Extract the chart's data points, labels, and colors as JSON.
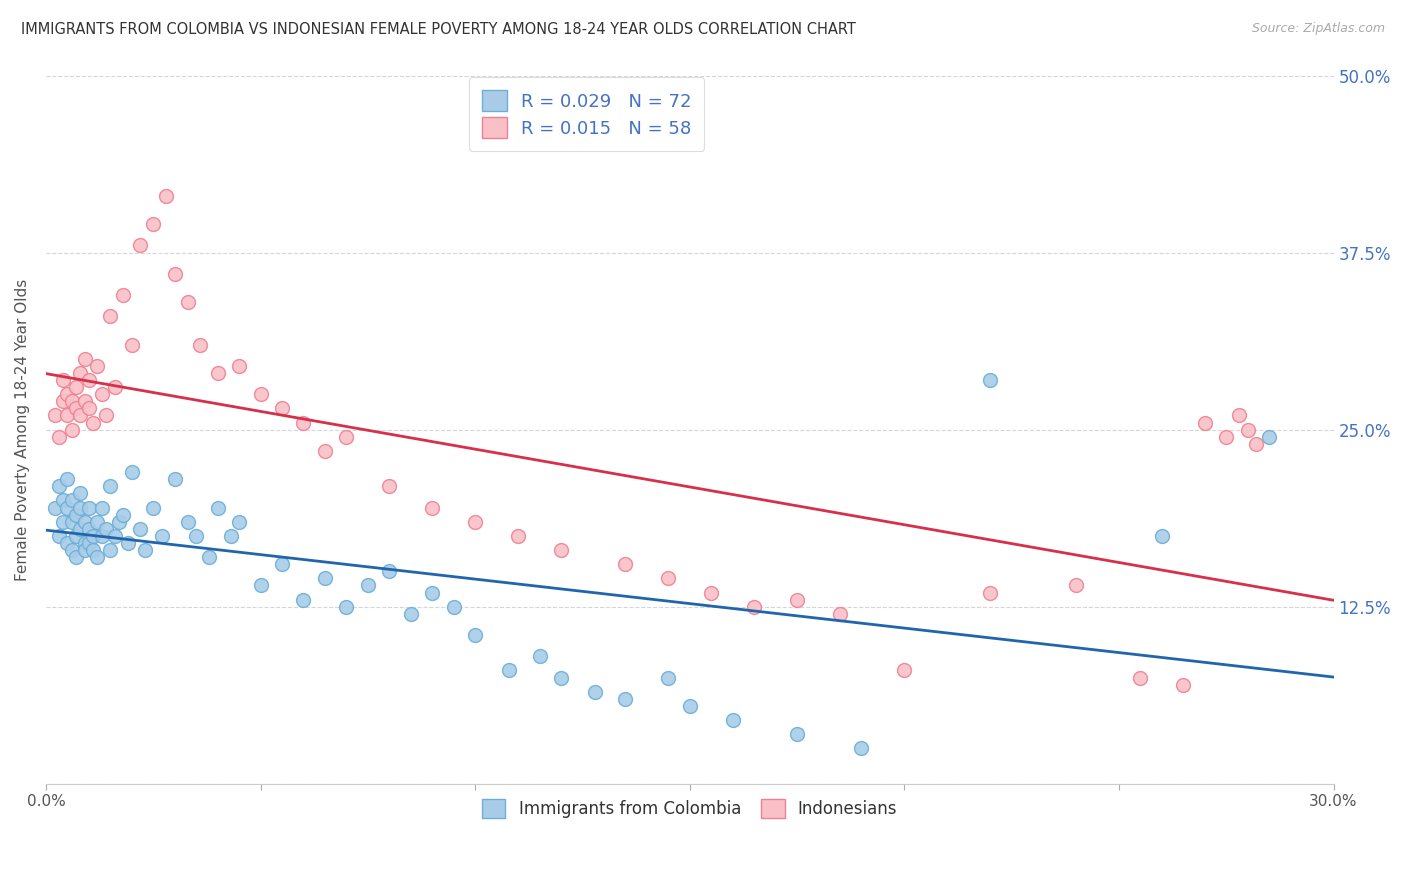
{
  "title": "IMMIGRANTS FROM COLOMBIA VS INDONESIAN FEMALE POVERTY AMONG 18-24 YEAR OLDS CORRELATION CHART",
  "source": "Source: ZipAtlas.com",
  "ylabel": "Female Poverty Among 18-24 Year Olds",
  "x_min": 0.0,
  "x_max": 0.3,
  "y_min": 0.0,
  "y_max": 0.5,
  "x_ticks": [
    0.0,
    0.05,
    0.1,
    0.15,
    0.2,
    0.25,
    0.3
  ],
  "x_tick_labels": [
    "0.0%",
    "",
    "",
    "",
    "",
    "",
    "30.0%"
  ],
  "y_ticks": [
    0.0,
    0.125,
    0.25,
    0.375,
    0.5
  ],
  "y_tick_labels": [
    "",
    "12.5%",
    "25.0%",
    "37.5%",
    "50.0%"
  ],
  "colombia_color": "#a8cce8",
  "colombia_edge_color": "#6baed6",
  "indonesia_color": "#f9c0c8",
  "indonesia_edge_color": "#f08090",
  "colombia_line_color": "#2166ac",
  "indonesia_line_color": "#d6304a",
  "colombia_R": 0.029,
  "colombia_N": 72,
  "indonesia_R": 0.015,
  "indonesia_N": 58,
  "legend_label_colombia": "Immigrants from Colombia",
  "legend_label_indonesia": "Indonesians",
  "background_color": "#ffffff",
  "grid_color": "#cccccc",
  "colombia_x": [
    0.002,
    0.003,
    0.003,
    0.004,
    0.004,
    0.005,
    0.005,
    0.005,
    0.006,
    0.006,
    0.006,
    0.007,
    0.007,
    0.007,
    0.008,
    0.008,
    0.008,
    0.009,
    0.009,
    0.009,
    0.01,
    0.01,
    0.01,
    0.011,
    0.011,
    0.012,
    0.012,
    0.013,
    0.013,
    0.014,
    0.015,
    0.015,
    0.016,
    0.017,
    0.018,
    0.019,
    0.02,
    0.022,
    0.023,
    0.025,
    0.027,
    0.03,
    0.033,
    0.035,
    0.038,
    0.04,
    0.043,
    0.045,
    0.05,
    0.055,
    0.06,
    0.065,
    0.07,
    0.075,
    0.08,
    0.085,
    0.09,
    0.095,
    0.1,
    0.108,
    0.115,
    0.12,
    0.128,
    0.135,
    0.145,
    0.15,
    0.16,
    0.175,
    0.19,
    0.22,
    0.26,
    0.285
  ],
  "colombia_y": [
    0.195,
    0.175,
    0.21,
    0.185,
    0.2,
    0.17,
    0.195,
    0.215,
    0.165,
    0.185,
    0.2,
    0.175,
    0.19,
    0.16,
    0.18,
    0.195,
    0.205,
    0.17,
    0.185,
    0.165,
    0.18,
    0.17,
    0.195,
    0.165,
    0.175,
    0.185,
    0.16,
    0.195,
    0.175,
    0.18,
    0.21,
    0.165,
    0.175,
    0.185,
    0.19,
    0.17,
    0.22,
    0.18,
    0.165,
    0.195,
    0.175,
    0.215,
    0.185,
    0.175,
    0.16,
    0.195,
    0.175,
    0.185,
    0.14,
    0.155,
    0.13,
    0.145,
    0.125,
    0.14,
    0.15,
    0.12,
    0.135,
    0.125,
    0.105,
    0.08,
    0.09,
    0.075,
    0.065,
    0.06,
    0.075,
    0.055,
    0.045,
    0.035,
    0.025,
    0.285,
    0.175,
    0.245
  ],
  "indonesia_x": [
    0.002,
    0.003,
    0.004,
    0.004,
    0.005,
    0.005,
    0.006,
    0.006,
    0.007,
    0.007,
    0.008,
    0.008,
    0.009,
    0.009,
    0.01,
    0.01,
    0.011,
    0.012,
    0.013,
    0.014,
    0.015,
    0.016,
    0.018,
    0.02,
    0.022,
    0.025,
    0.028,
    0.03,
    0.033,
    0.036,
    0.04,
    0.045,
    0.05,
    0.055,
    0.06,
    0.065,
    0.07,
    0.08,
    0.09,
    0.1,
    0.11,
    0.12,
    0.135,
    0.145,
    0.155,
    0.165,
    0.175,
    0.185,
    0.2,
    0.22,
    0.24,
    0.255,
    0.265,
    0.27,
    0.275,
    0.278,
    0.28,
    0.282
  ],
  "indonesia_y": [
    0.26,
    0.245,
    0.27,
    0.285,
    0.26,
    0.275,
    0.25,
    0.27,
    0.28,
    0.265,
    0.29,
    0.26,
    0.3,
    0.27,
    0.285,
    0.265,
    0.255,
    0.295,
    0.275,
    0.26,
    0.33,
    0.28,
    0.345,
    0.31,
    0.38,
    0.395,
    0.415,
    0.36,
    0.34,
    0.31,
    0.29,
    0.295,
    0.275,
    0.265,
    0.255,
    0.235,
    0.245,
    0.21,
    0.195,
    0.185,
    0.175,
    0.165,
    0.155,
    0.145,
    0.135,
    0.125,
    0.13,
    0.12,
    0.08,
    0.135,
    0.14,
    0.075,
    0.07,
    0.255,
    0.245,
    0.26,
    0.25,
    0.24
  ]
}
